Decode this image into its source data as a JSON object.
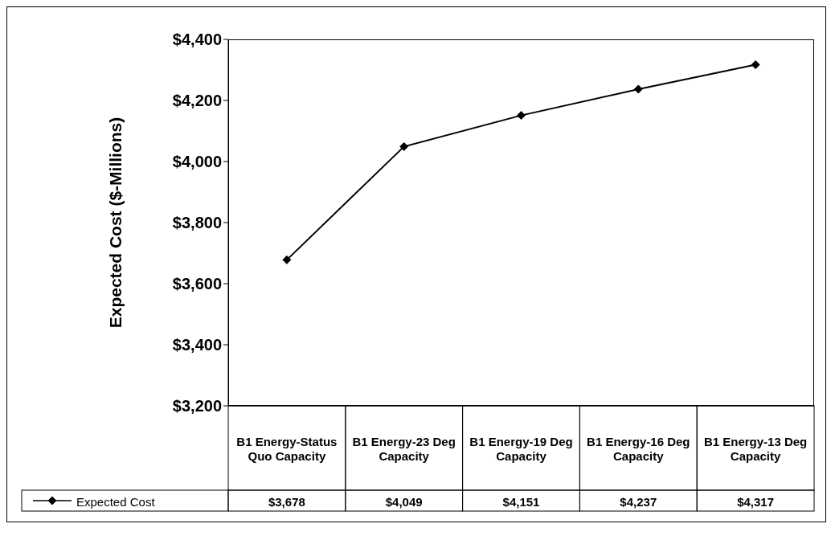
{
  "chart_data": {
    "type": "line",
    "ylabel": "Expected Cost ($-Millions)",
    "categories": [
      "B1 Energy-Status Quo Capacity",
      "B1 Energy-23 Deg Capacity",
      "B1 Energy-19 Deg Capacity",
      "B1 Energy-16 Deg Capacity",
      "B1 Energy-13 Deg Capacity"
    ],
    "series": [
      {
        "name": "Expected Cost",
        "color": "#000000",
        "values": [
          3678,
          4049,
          4151,
          4237,
          4317
        ],
        "value_labels": [
          "$3,678",
          "$4,049",
          "$4,151",
          "$4,237",
          "$4,317"
        ]
      }
    ],
    "ylim": [
      3200,
      4400
    ],
    "yticks": [
      {
        "value": 3200,
        "label": "$3,200"
      },
      {
        "value": 3400,
        "label": "$3,400"
      },
      {
        "value": 3600,
        "label": "$3,600"
      },
      {
        "value": 3800,
        "label": "$3,800"
      },
      {
        "value": 4000,
        "label": "$4,000"
      },
      {
        "value": 4200,
        "label": "$4,200"
      },
      {
        "value": 4400,
        "label": "$4,400"
      }
    ],
    "grid": false,
    "legend": "bottom left",
    "marker": "diamond",
    "line_style": "solid"
  }
}
